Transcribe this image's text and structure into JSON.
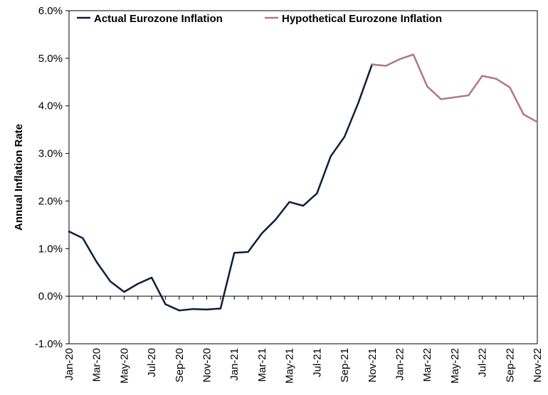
{
  "chart_data": {
    "type": "line",
    "title": "",
    "xlabel": "",
    "ylabel": "Annual Inflation Rate",
    "ylim": [
      -1.0,
      6.0
    ],
    "y_ticks": [
      "-1.0%",
      "0.0%",
      "1.0%",
      "2.0%",
      "3.0%",
      "4.0%",
      "5.0%",
      "6.0%"
    ],
    "x": [
      "Jan-20",
      "Feb-20",
      "Mar-20",
      "Apr-20",
      "May-20",
      "Jun-20",
      "Jul-20",
      "Aug-20",
      "Sep-20",
      "Oct-20",
      "Nov-20",
      "Dec-20",
      "Jan-21",
      "Feb-21",
      "Mar-21",
      "Apr-21",
      "May-21",
      "Jun-21",
      "Jul-21",
      "Aug-21",
      "Sep-21",
      "Oct-21",
      "Nov-21",
      "Dec-21",
      "Jan-22",
      "Feb-22",
      "Mar-22",
      "Apr-22",
      "May-22",
      "Jun-22",
      "Jul-22",
      "Aug-22",
      "Sep-22",
      "Oct-22",
      "Nov-22"
    ],
    "x_tick_labels": [
      "Jan-20",
      "Mar-20",
      "May-20",
      "Jul-20",
      "Sep-20",
      "Nov-20",
      "Jan-21",
      "Mar-21",
      "May-21",
      "Jul-21",
      "Sep-21",
      "Nov-21",
      "Jan-22",
      "Mar-22",
      "May-22",
      "Jul-22",
      "Sep-22",
      "Nov-22"
    ],
    "grid": false,
    "legend_position": "top",
    "series": [
      {
        "name": "Actual Eurozone Inflation",
        "color": "#0f1e3d",
        "values": [
          1.36,
          1.22,
          0.72,
          0.31,
          0.09,
          0.26,
          0.39,
          -0.17,
          -0.3,
          -0.27,
          -0.28,
          -0.26,
          0.91,
          0.93,
          1.32,
          1.61,
          1.98,
          1.9,
          2.16,
          2.94,
          3.35,
          4.06,
          4.87,
          null,
          null,
          null,
          null,
          null,
          null,
          null,
          null,
          null,
          null,
          null,
          null
        ]
      },
      {
        "name": "Hypothetical Eurozone Inflation",
        "color": "#b07883",
        "values": [
          null,
          null,
          null,
          null,
          null,
          null,
          null,
          null,
          null,
          null,
          null,
          null,
          null,
          null,
          null,
          null,
          null,
          null,
          null,
          null,
          null,
          null,
          4.87,
          4.84,
          4.98,
          5.08,
          4.41,
          4.14,
          4.18,
          4.22,
          4.63,
          4.57,
          4.39,
          3.82,
          3.66
        ]
      }
    ]
  }
}
